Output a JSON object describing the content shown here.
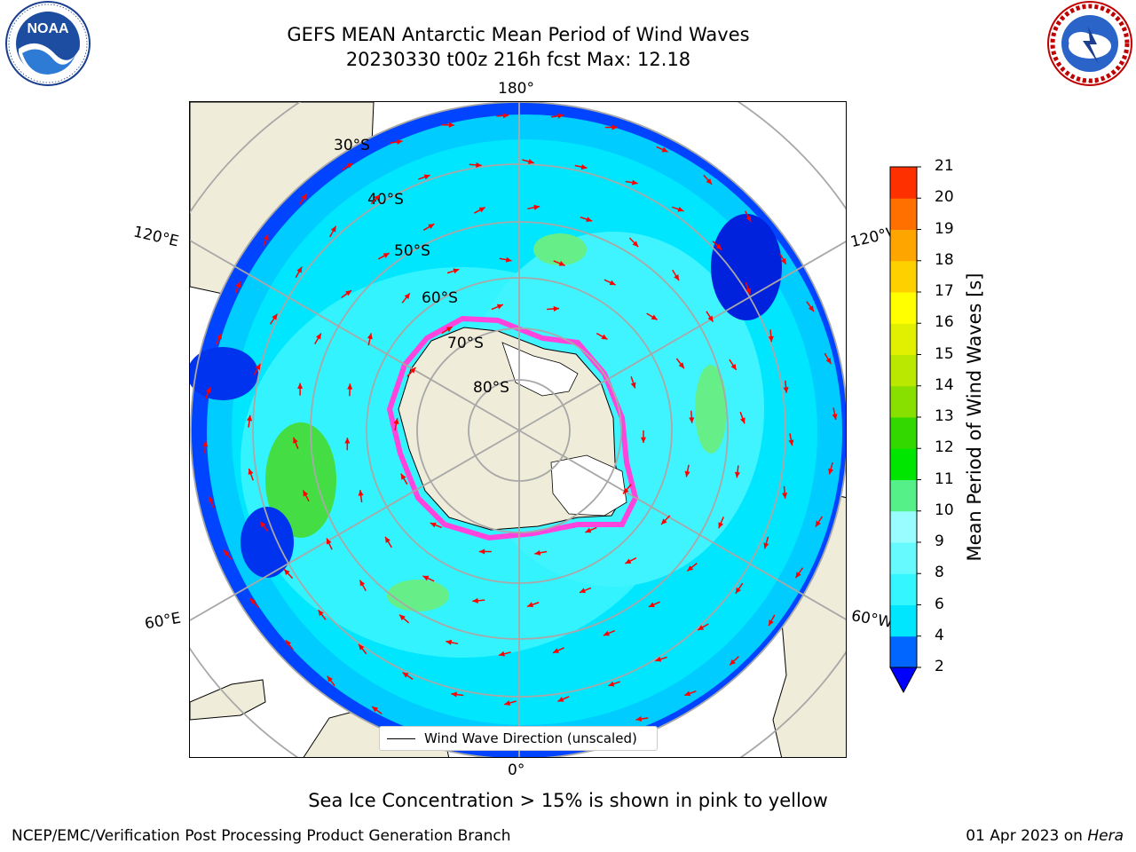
{
  "header": {
    "title_line1": "GEFS MEAN Antarctic Mean Period of Wind Waves",
    "title_line2": "20230330 t00z 216h fcst   Max: 12.18"
  },
  "logos": {
    "left": {
      "icon": "noaa-logo",
      "text": "NOAA"
    },
    "right": {
      "icon": "nws-logo",
      "text": "NATIONAL WEATHER SERVICE"
    }
  },
  "map": {
    "projection": "south-polar-stereographic",
    "lon_labels": {
      "top": "180°",
      "bottom": "0°",
      "left_upper": "120°E",
      "left_lower": "60°E",
      "right_upper": "120°W",
      "right_lower": "60°W"
    },
    "lat_labels": [
      "30°S",
      "40°S",
      "50°S",
      "60°S",
      "70°S",
      "80°S"
    ],
    "legend_label": "Wind Wave Direction (unscaled)",
    "arrow_color": "#ff0000",
    "land_color": "#efedd9",
    "ice_color": "#ff44dd"
  },
  "colorbar": {
    "label": "Mean Period of Wind Waves [s]",
    "ticks": [
      "2",
      "4",
      "6",
      "8",
      "9",
      "10",
      "11",
      "12",
      "13",
      "14",
      "15",
      "16",
      "17",
      "18",
      "19",
      "20",
      "21"
    ],
    "colors": [
      "#0000ff",
      "#0066ff",
      "#00e6ff",
      "#33f6ff",
      "#66faff",
      "#99fcff",
      "#55f088",
      "#00e600",
      "#33d800",
      "#88e000",
      "#bbe800",
      "#e0f000",
      "#ffff00",
      "#ffd000",
      "#ffa500",
      "#ff7000",
      "#ff3000",
      "#ff0000"
    ]
  },
  "footer": {
    "subtitle": "Sea Ice Concentration > 15% is shown in pink to yellow",
    "credit": "NCEP/EMC/Verification Post Processing Product Generation Branch",
    "date": "01 Apr 2023 on",
    "host": "Hera"
  }
}
